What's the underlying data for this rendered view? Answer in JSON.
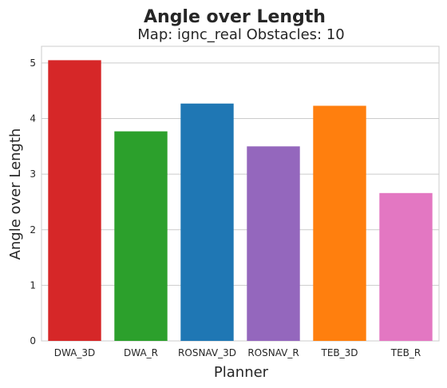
{
  "chart_data": {
    "type": "bar",
    "suptitle": "Angle over Length",
    "title": "Map: ignc_real Obstacles: 10",
    "xlabel": "Planner",
    "ylabel": "Angle over Length",
    "categories": [
      "DWA_3D",
      "DWA_R",
      "ROSNAV_3D",
      "ROSNAV_R",
      "TEB_3D",
      "TEB_R"
    ],
    "values": [
      5.05,
      3.77,
      4.27,
      3.5,
      4.23,
      2.66
    ],
    "colors": [
      "#d62728",
      "#2ca02c",
      "#1f77b4",
      "#9467bd",
      "#ff7f0e",
      "#e377c2"
    ],
    "yticks": [
      0,
      1,
      2,
      3,
      4,
      5
    ],
    "ylim": [
      0,
      5.3
    ],
    "grid": true,
    "legend": "none"
  }
}
